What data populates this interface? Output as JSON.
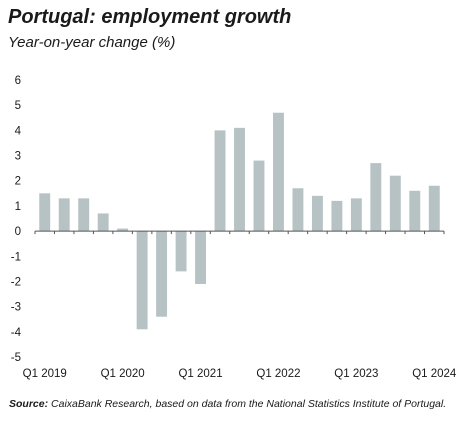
{
  "title": "Portugal: employment growth",
  "subtitle": "Year-on-year change (%)",
  "source_label": "Source:",
  "source_text": "CaixaBank Research, based on data from the National Statistics Institute of Portugal.",
  "colors": {
    "bar": "#b6c2c4",
    "axis": "#555555",
    "text": "#1a1a1a"
  },
  "chart_data": {
    "type": "bar",
    "title": "Portugal: employment growth",
    "subtitle": "Year-on-year change (%)",
    "xlabel": "",
    "ylabel": "",
    "ylim": [
      -5,
      6
    ],
    "yticks": [
      6,
      5,
      4,
      3,
      2,
      1,
      0,
      -1,
      -2,
      -3,
      -4,
      -5
    ],
    "grid": false,
    "x_tick_labels": [
      "Q1 2019",
      "Q1 2020",
      "Q1 2021",
      "Q1 2022",
      "Q1 2023",
      "Q1 2024"
    ],
    "x_tick_label_indices": [
      0,
      4,
      8,
      12,
      16,
      20
    ],
    "categories": [
      "Q1 2019",
      "Q2 2019",
      "Q3 2019",
      "Q4 2019",
      "Q1 2020",
      "Q2 2020",
      "Q3 2020",
      "Q4 2020",
      "Q1 2021",
      "Q2 2021",
      "Q3 2021",
      "Q4 2021",
      "Q1 2022",
      "Q2 2022",
      "Q3 2022",
      "Q4 2022",
      "Q1 2023",
      "Q2 2023",
      "Q3 2023",
      "Q4 2023",
      "Q1 2024"
    ],
    "values": [
      1.5,
      1.3,
      1.3,
      0.7,
      0.1,
      -3.9,
      -3.4,
      -1.6,
      -2.1,
      4.0,
      4.1,
      2.8,
      4.7,
      1.7,
      1.4,
      1.2,
      1.3,
      2.7,
      2.2,
      1.6,
      1.8
    ]
  }
}
